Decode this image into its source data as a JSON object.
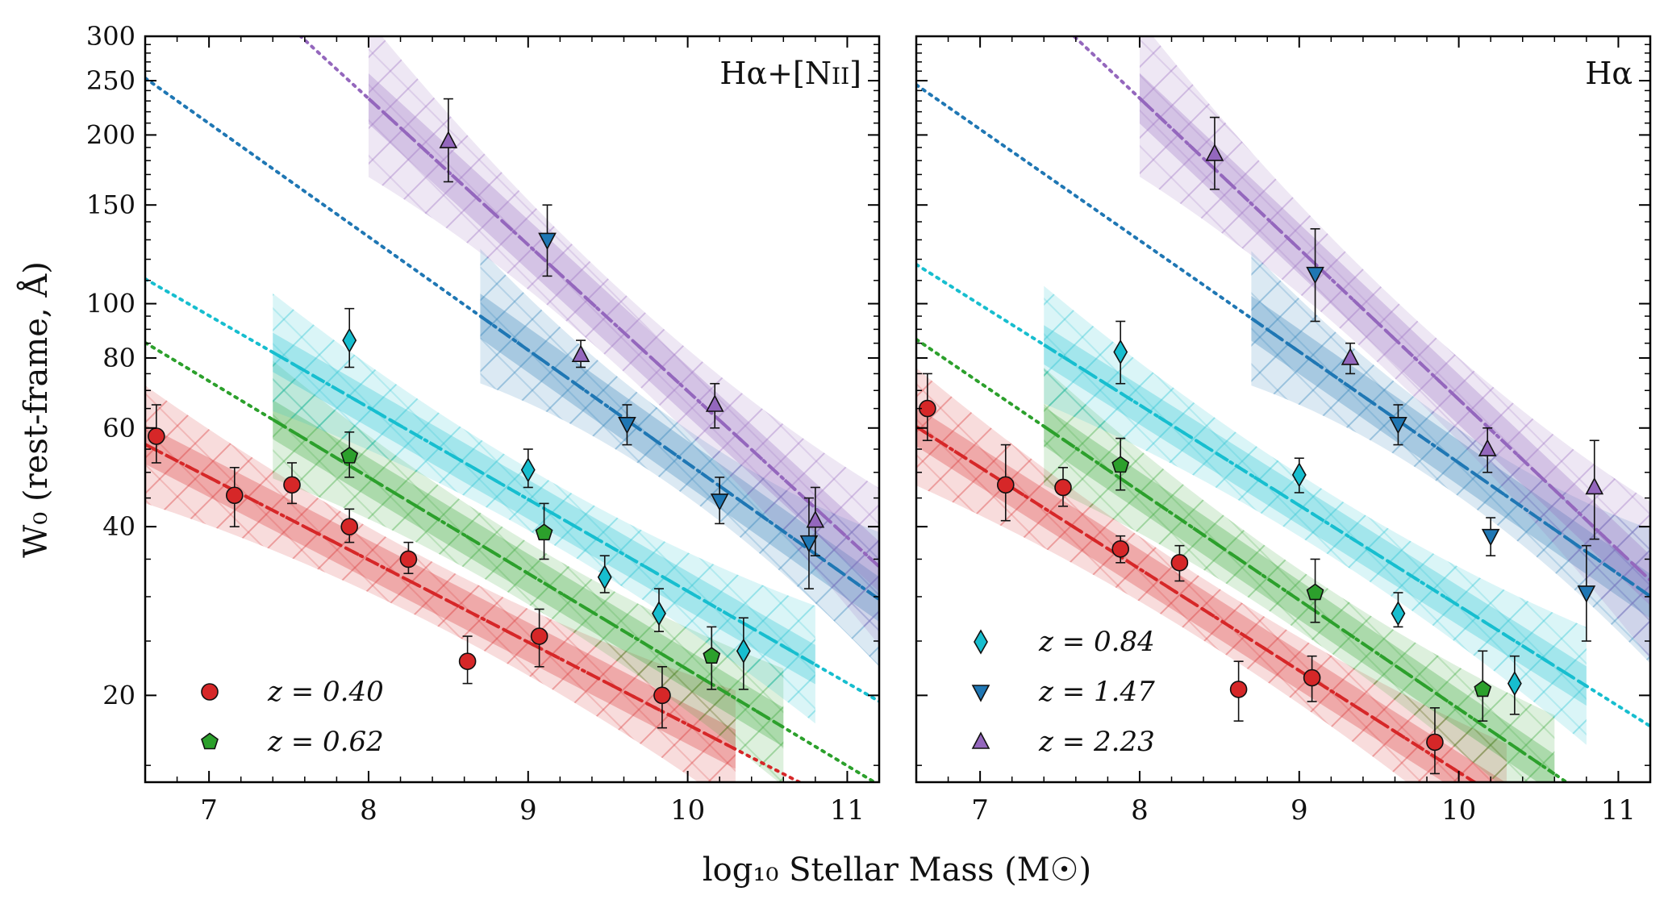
{
  "figure": {
    "shared_ylabel": "W₀ (rest-frame, Å)",
    "shared_xlabel": "log₁₀ Stellar Mass (M☉)"
  },
  "chart_data": [
    {
      "type": "scatter",
      "panel": "left",
      "title": "Hα+[NII]",
      "title_parts": {
        "main": "Hα+[N",
        "smallcaps": "II",
        "close": "]"
      },
      "xlim": [
        6.6,
        11.2
      ],
      "ylim": [
        14,
        300
      ],
      "yscale": "log",
      "xticks": [
        7,
        8,
        9,
        10,
        11
      ],
      "yticks": [
        20,
        40,
        60,
        80,
        100,
        150,
        200,
        250,
        300
      ],
      "legend": {
        "placement": "bottom-left",
        "entries": [
          "z = 0.40",
          "z = 0.62"
        ],
        "series_index": [
          0,
          1
        ]
      },
      "series": [
        {
          "name": "z = 0.40",
          "color": "#d62728",
          "marker": "circle",
          "points": [
            {
              "x": 6.67,
              "y": 58,
              "lo": 52,
              "hi": 66
            },
            {
              "x": 7.16,
              "y": 45.5,
              "lo": 40,
              "hi": 51
            },
            {
              "x": 7.52,
              "y": 47.5,
              "lo": 44,
              "hi": 52
            },
            {
              "x": 7.88,
              "y": 40,
              "lo": 37.5,
              "hi": 43
            },
            {
              "x": 8.25,
              "y": 35,
              "lo": 33,
              "hi": 37.5
            },
            {
              "x": 8.62,
              "y": 23,
              "lo": 21,
              "hi": 25.5
            },
            {
              "x": 9.07,
              "y": 25.5,
              "lo": 22.5,
              "hi": 28.5
            },
            {
              "x": 9.84,
              "y": 20,
              "lo": 17.5,
              "hi": 22.5
            }
          ],
          "fit": {
            "slope": -0.147,
            "intercept": 2.719,
            "x_range": [
              6.6,
              10.3
            ]
          },
          "band": {
            "x_range": [
              6.6,
              10.3
            ],
            "inner": 0.035,
            "outer_min": 0.055,
            "outer_grow": 0.05
          }
        },
        {
          "name": "z = 0.62",
          "color": "#2ca02c",
          "marker": "pentagon",
          "points": [
            {
              "x": 7.88,
              "y": 53.5,
              "lo": 49,
              "hi": 59
            },
            {
              "x": 9.1,
              "y": 39,
              "lo": 35,
              "hi": 44
            },
            {
              "x": 10.15,
              "y": 23.5,
              "lo": 20.5,
              "hi": 26.5
            }
          ],
          "fit": {
            "slope": -0.1716,
            "intercept": 3.063,
            "x_range": [
              7.4,
              10.6
            ]
          },
          "band": {
            "x_range": [
              7.4,
              10.6
            ],
            "inner": 0.035,
            "outer_min": 0.055,
            "outer_grow": 0.05
          }
        },
        {
          "name": "z = 0.84",
          "color": "#17becf",
          "marker": "diamond",
          "points": [
            {
              "x": 7.88,
              "y": 86,
              "lo": 77,
              "hi": 98
            },
            {
              "x": 9.0,
              "y": 50.5,
              "lo": 47,
              "hi": 55
            },
            {
              "x": 9.48,
              "y": 32.5,
              "lo": 30.5,
              "hi": 35.5
            },
            {
              "x": 9.82,
              "y": 28,
              "lo": 26,
              "hi": 31
            },
            {
              "x": 10.35,
              "y": 24,
              "lo": 20.5,
              "hi": 27.5
            }
          ],
          "fit": {
            "slope": -0.1639,
            "intercept": 3.126,
            "x_range": [
              7.4,
              10.8
            ]
          },
          "band": {
            "x_range": [
              7.4,
              10.8
            ],
            "inner": 0.035,
            "outer_min": 0.055,
            "outer_grow": 0.05
          }
        },
        {
          "name": "z = 1.47",
          "color": "#1f77b4",
          "marker": "triangle-down",
          "points": [
            {
              "x": 9.12,
              "y": 130,
              "lo": 112,
              "hi": 150
            },
            {
              "x": 9.62,
              "y": 61,
              "lo": 56,
              "hi": 66
            },
            {
              "x": 10.2,
              "y": 44.5,
              "lo": 40.5,
              "hi": 49
            },
            {
              "x": 10.76,
              "y": 37.5,
              "lo": 31,
              "hi": 45
            }
          ],
          "fit": {
            "slope": -0.2022,
            "intercept": 3.737,
            "x_range": [
              8.7,
              11.2
            ]
          },
          "band": {
            "x_range": [
              8.7,
              11.2
            ],
            "inner": 0.04,
            "outer_min": 0.06,
            "outer_grow": 0.06
          }
        },
        {
          "name": "z = 2.23",
          "color": "#9467bd",
          "marker": "triangle-up",
          "points": [
            {
              "x": 8.5,
              "y": 195,
              "lo": 165,
              "hi": 232
            },
            {
              "x": 9.33,
              "y": 81,
              "lo": 77,
              "hi": 86
            },
            {
              "x": 10.17,
              "y": 66,
              "lo": 60,
              "hi": 72
            },
            {
              "x": 10.8,
              "y": 41,
              "lo": 35.5,
              "hi": 47
            }
          ],
          "fit": {
            "slope": -0.261,
            "intercept": 4.454,
            "x_range": [
              8.0,
              11.2
            ]
          },
          "band": {
            "x_range": [
              8.0,
              11.2
            ],
            "inner": 0.045,
            "outer_min": 0.07,
            "outer_grow": 0.07
          }
        }
      ]
    },
    {
      "type": "scatter",
      "panel": "right",
      "title": "Hα",
      "xlim": [
        6.6,
        11.2
      ],
      "ylim": [
        14,
        300
      ],
      "yscale": "log",
      "xticks": [
        7,
        8,
        9,
        10,
        11
      ],
      "yticks": [
        20,
        40,
        60,
        80,
        100,
        150,
        200,
        250,
        300
      ],
      "legend": {
        "placement": "bottom-left",
        "entries": [
          "z = 0.84",
          "z = 1.47",
          "z = 2.23"
        ],
        "series_index": [
          2,
          3,
          4
        ]
      },
      "series": [
        {
          "name": "z = 0.40",
          "color": "#d62728",
          "marker": "circle",
          "points": [
            {
              "x": 6.67,
              "y": 65,
              "lo": 57,
              "hi": 75
            },
            {
              "x": 7.16,
              "y": 47.5,
              "lo": 41,
              "hi": 56
            },
            {
              "x": 7.52,
              "y": 47,
              "lo": 43.5,
              "hi": 51
            },
            {
              "x": 7.88,
              "y": 36.5,
              "lo": 34.5,
              "hi": 38.5
            },
            {
              "x": 8.25,
              "y": 34.5,
              "lo": 32,
              "hi": 37
            },
            {
              "x": 8.62,
              "y": 20.5,
              "lo": 18,
              "hi": 23
            },
            {
              "x": 9.08,
              "y": 21.5,
              "lo": 19.5,
              "hi": 23.5
            },
            {
              "x": 9.85,
              "y": 16.5,
              "lo": 14.5,
              "hi": 19
            }
          ],
          "fit": {
            "slope": -0.1813,
            "intercept": 2.977,
            "x_range": [
              6.6,
              10.3
            ]
          },
          "band": {
            "x_range": [
              6.6,
              10.3
            ],
            "inner": 0.035,
            "outer_min": 0.055,
            "outer_grow": 0.05
          }
        },
        {
          "name": "z = 0.62",
          "color": "#2ca02c",
          "marker": "pentagon",
          "points": [
            {
              "x": 7.88,
              "y": 51.5,
              "lo": 46.5,
              "hi": 57.5
            },
            {
              "x": 9.1,
              "y": 30.5,
              "lo": 27,
              "hi": 35
            },
            {
              "x": 10.15,
              "y": 20.5,
              "lo": 18,
              "hi": 24
            }
          ],
          "fit": {
            "slope": -0.1939,
            "intercept": 3.216,
            "x_range": [
              7.4,
              10.6
            ]
          },
          "band": {
            "x_range": [
              7.4,
              10.6
            ],
            "inner": 0.035,
            "outer_min": 0.055,
            "outer_grow": 0.05
          }
        },
        {
          "name": "z = 0.84",
          "color": "#17becf",
          "marker": "diamond",
          "points": [
            {
              "x": 7.88,
              "y": 82,
              "lo": 72,
              "hi": 93
            },
            {
              "x": 9.0,
              "y": 49.5,
              "lo": 46,
              "hi": 53
            },
            {
              "x": 9.62,
              "y": 28,
              "lo": 26.5,
              "hi": 30.5
            },
            {
              "x": 10.35,
              "y": 21,
              "lo": 18.5,
              "hi": 23.5
            }
          ],
          "fit": {
            "slope": -0.1791,
            "intercept": 3.252,
            "x_range": [
              7.4,
              10.8
            ]
          },
          "band": {
            "x_range": [
              7.4,
              10.8
            ],
            "inner": 0.035,
            "outer_min": 0.055,
            "outer_grow": 0.05
          }
        },
        {
          "name": "z = 1.47",
          "color": "#1f77b4",
          "marker": "triangle-down",
          "points": [
            {
              "x": 9.1,
              "y": 113,
              "lo": 93,
              "hi": 136
            },
            {
              "x": 9.62,
              "y": 61,
              "lo": 56,
              "hi": 66
            },
            {
              "x": 10.2,
              "y": 38.5,
              "lo": 35.5,
              "hi": 41.5
            },
            {
              "x": 10.8,
              "y": 30.5,
              "lo": 25,
              "hi": 37
            }
          ],
          "fit": {
            "slope": -0.1984,
            "intercept": 3.7,
            "x_range": [
              8.7,
              11.2
            ]
          },
          "band": {
            "x_range": [
              8.7,
              11.2
            ],
            "inner": 0.04,
            "outer_min": 0.06,
            "outer_grow": 0.06
          }
        },
        {
          "name": "z = 2.23",
          "color": "#9467bd",
          "marker": "triangle-up",
          "points": [
            {
              "x": 8.47,
              "y": 185,
              "lo": 160,
              "hi": 215
            },
            {
              "x": 9.32,
              "y": 80,
              "lo": 75,
              "hi": 85
            },
            {
              "x": 10.18,
              "y": 55,
              "lo": 50,
              "hi": 60
            },
            {
              "x": 10.85,
              "y": 47,
              "lo": 38,
              "hi": 57
            }
          ],
          "fit": {
            "slope": -0.2688,
            "intercept": 4.517,
            "x_range": [
              8.0,
              11.2
            ]
          },
          "band": {
            "x_range": [
              8.0,
              11.2
            ],
            "inner": 0.045,
            "outer_min": 0.07,
            "outer_grow": 0.07
          }
        }
      ]
    }
  ]
}
